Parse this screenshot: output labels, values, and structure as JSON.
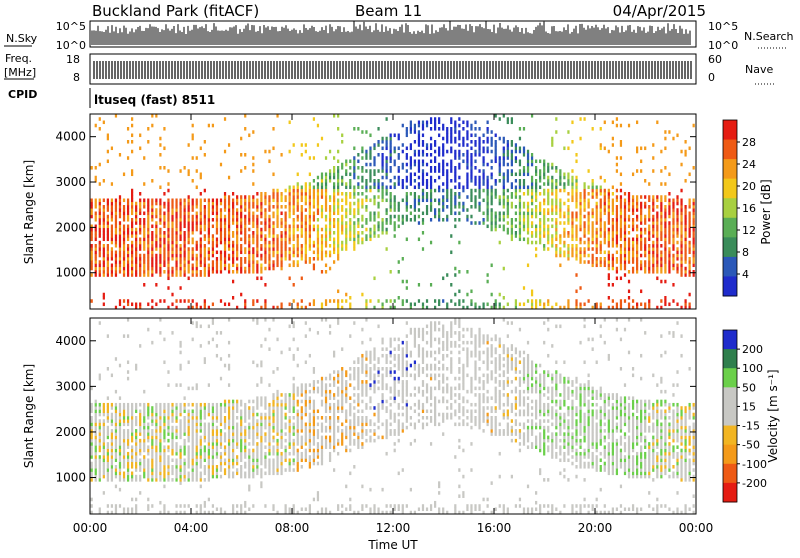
{
  "header": {
    "title": "Buckland Park (fitACF)",
    "beam": "Beam 11",
    "date": "04/Apr/2015"
  },
  "top_strip": {
    "left_label": "N.Sky",
    "right_label": "N.Search",
    "left_ticks": [
      "10^5",
      "10^0"
    ],
    "right_ticks": [
      "10^5",
      "10^0"
    ]
  },
  "freq_strip": {
    "left_label_line1": "Freq.",
    "left_label_line2": "[MHz]",
    "right_label": "Nave",
    "left_ticks": [
      "18",
      "8"
    ],
    "right_ticks": [
      "60",
      "0"
    ]
  },
  "cpid": {
    "label": "CPID",
    "value": "ltuseq (fast) 8511"
  },
  "colors": {
    "power_scale": [
      "#1f2ccc",
      "#2b58b8",
      "#3a8c5a",
      "#5aae55",
      "#a8d040",
      "#f2c81a",
      "#f49a19",
      "#ee5a14",
      "#e51c12"
    ],
    "velocity_scale": [
      "#e51c12",
      "#ee5a14",
      "#f49a19",
      "#f2b522",
      "#c8c8c4",
      "#c8c8c4",
      "#6bd04a",
      "#2f7f4d",
      "#1f2ccc"
    ]
  },
  "chart_data": [
    {
      "type": "heatmap",
      "title": "Power",
      "xlabel": "",
      "ylabel": "Slant Range [km]",
      "x_ticks": [
        "00:00",
        "04:00",
        "08:00",
        "12:00",
        "16:00",
        "20:00",
        "00:00"
      ],
      "y_ticks": [
        1000,
        2000,
        3000,
        4000
      ],
      "ylim": [
        200,
        4500
      ],
      "xlim_hours": [
        0,
        24
      ],
      "colorbar": {
        "label": "Power [dB]",
        "ticks": [
          4,
          8,
          12,
          16,
          20,
          24,
          28
        ],
        "range": [
          0,
          32
        ]
      }
    },
    {
      "type": "heatmap",
      "title": "Velocity",
      "xlabel": "Time UT",
      "ylabel": "Slant Range [km]",
      "x_ticks": [
        "00:00",
        "04:00",
        "08:00",
        "12:00",
        "16:00",
        "20:00",
        "00:00"
      ],
      "y_ticks": [
        1000,
        2000,
        3000,
        4000
      ],
      "ylim": [
        200,
        4500
      ],
      "xlim_hours": [
        0,
        24
      ],
      "colorbar": {
        "label": "Velocity [m s⁻¹]",
        "ticks": [
          200,
          100,
          50,
          15,
          -15,
          -50,
          -100,
          -200
        ]
      }
    }
  ]
}
